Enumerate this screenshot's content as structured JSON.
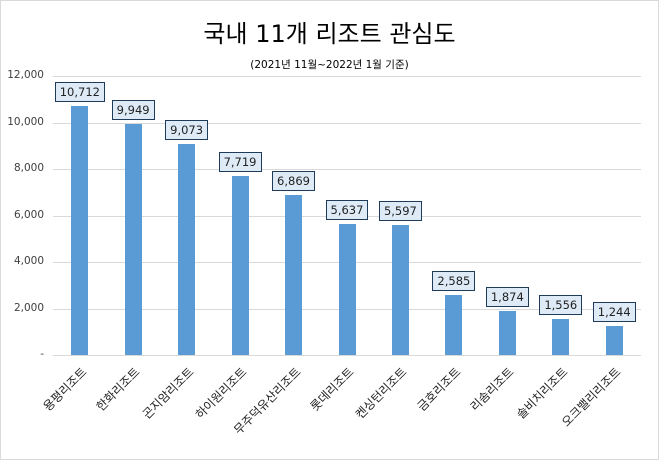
{
  "chart_data": {
    "type": "bar",
    "title": "국내 11개 리조트 관심도",
    "subtitle": "(2021년 11월~2022년 1월 기준)",
    "xlabel": "",
    "ylabel": "",
    "ylim": [
      0,
      12000
    ],
    "yticks": [
      "-",
      "2,000",
      "4,000",
      "6,000",
      "8,000",
      "10,000",
      "12,000"
    ],
    "grid": true,
    "legend": null,
    "bar_color": "#5b9bd5",
    "label_box_color": "#deebf7",
    "categories": [
      "용평리조트",
      "한화리조트",
      "곤지암리조트",
      "하이원리조트",
      "무주덕유산리조트",
      "롯데리조트",
      "켄싱턴리조트",
      "금호리조트",
      "리솜리조트",
      "솔비치리조트",
      "오크밸리리조트"
    ],
    "values": [
      10712,
      9949,
      9073,
      7719,
      6869,
      5637,
      5597,
      2585,
      1874,
      1556,
      1244
    ],
    "value_labels": [
      "10,712",
      "9,949",
      "9,073",
      "7,719",
      "6,869",
      "5,637",
      "5,597",
      "2,585",
      "1,874",
      "1,556",
      "1,244"
    ]
  }
}
